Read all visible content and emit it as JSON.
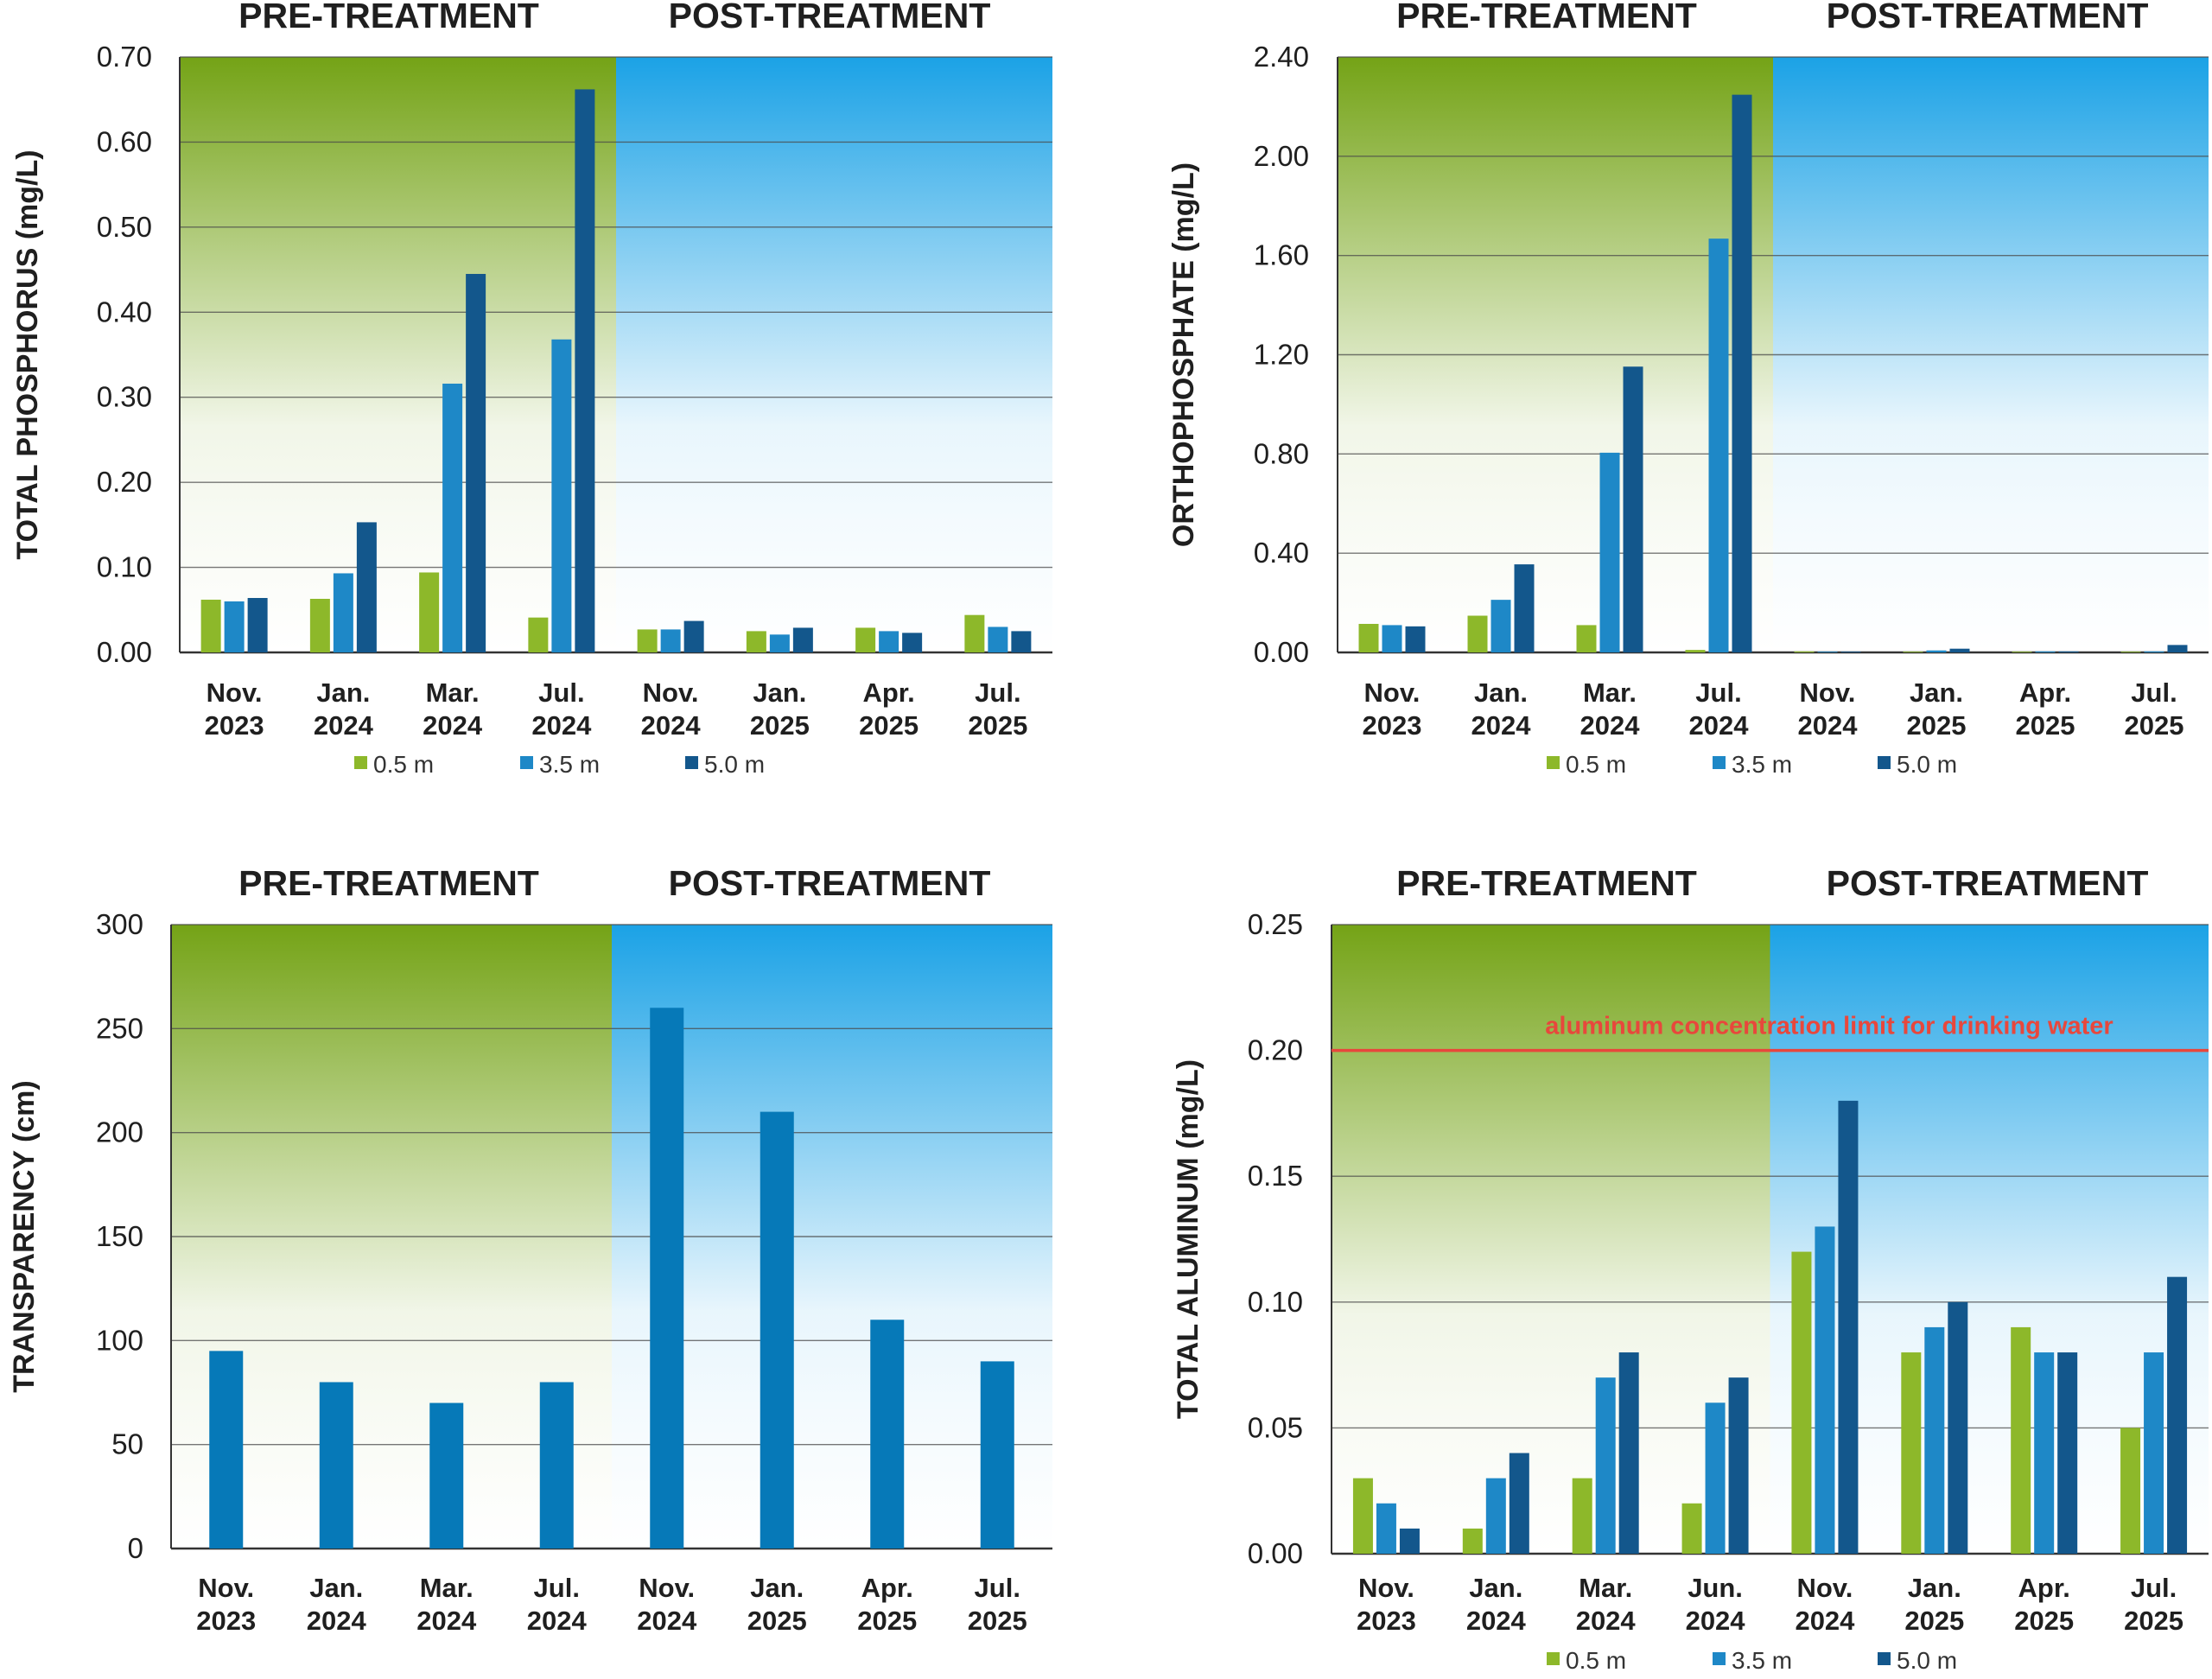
{
  "colors": {
    "series_0_5m": "#8db82a",
    "series_3_5m": "#1e88c7",
    "series_5_0m": "#13578c",
    "transparency_bar": "#0679b8",
    "pre_treatment_band": "#74a316",
    "post_treatment_band": "#1ba2e6",
    "limit_line": "#e8473c"
  },
  "chart_data": [
    {
      "type": "bar",
      "panel": "top-left",
      "phases": [
        "PRE-TREATMENT",
        "POST-TREATMENT"
      ],
      "phase_split_after_index": 3,
      "ylabel": "TOTAL PHOSPHORUS  (mg/L)",
      "ylim": [
        0,
        0.7
      ],
      "yticks": [
        "0.00",
        "0.10",
        "0.20",
        "0.30",
        "0.40",
        "0.50",
        "0.60",
        "0.70"
      ],
      "categories": [
        [
          "Nov.",
          "2023"
        ],
        [
          "Jan.",
          "2024"
        ],
        [
          "Mar.",
          "2024"
        ],
        [
          "Jul.",
          "2024"
        ],
        [
          "Nov.",
          "2024"
        ],
        [
          "Jan.",
          "2025"
        ],
        [
          "Apr.",
          "2025"
        ],
        [
          "Jul.",
          "2025"
        ]
      ],
      "legend_position": "bottom",
      "series": [
        {
          "name": "0.5 m",
          "color_key": "series_0_5m",
          "values": [
            0.062,
            0.063,
            0.094,
            0.041,
            0.027,
            0.025,
            0.029,
            0.044
          ]
        },
        {
          "name": "3.5 m",
          "color_key": "series_3_5m",
          "values": [
            0.06,
            0.093,
            0.316,
            0.368,
            0.027,
            0.021,
            0.025,
            0.03
          ]
        },
        {
          "name": "5.0 m",
          "color_key": "series_5_0m",
          "values": [
            0.064,
            0.153,
            0.445,
            0.662,
            0.037,
            0.029,
            0.023,
            0.025
          ]
        }
      ]
    },
    {
      "type": "bar",
      "panel": "top-right",
      "phases": [
        "PRE-TREATMENT",
        "POST-TREATMENT"
      ],
      "phase_split_after_index": 3,
      "ylabel": "ORTHOPHOSPHATE (mg/L)",
      "ylim": [
        0,
        2.4
      ],
      "yticks": [
        "0.00",
        "0.40",
        "0.80",
        "1.20",
        "1.60",
        "2.00",
        "2.40"
      ],
      "categories": [
        [
          "Nov.",
          "2023"
        ],
        [
          "Jan.",
          "2024"
        ],
        [
          "Mar.",
          "2024"
        ],
        [
          "Jul.",
          "2024"
        ],
        [
          "Nov.",
          "2024"
        ],
        [
          "Jan.",
          "2025"
        ],
        [
          "Apr.",
          "2025"
        ],
        [
          "Jul.",
          "2025"
        ]
      ],
      "legend_position": "bottom",
      "series": [
        {
          "name": "0.5 m",
          "color_key": "series_0_5m",
          "values": [
            0.115,
            0.148,
            0.11,
            0.01,
            0.004,
            0.003,
            0.003,
            0.003
          ]
        },
        {
          "name": "3.5 m",
          "color_key": "series_3_5m",
          "values": [
            0.11,
            0.212,
            0.805,
            1.668,
            0.003,
            0.008,
            0.004,
            0.004
          ]
        },
        {
          "name": "5.0 m",
          "color_key": "series_5_0m",
          "values": [
            0.105,
            0.355,
            1.152,
            2.248,
            0.003,
            0.015,
            0.004,
            0.03
          ]
        }
      ]
    },
    {
      "type": "bar",
      "panel": "bottom-left",
      "phases": [
        "PRE-TREATMENT",
        "POST-TREATMENT"
      ],
      "phase_split_after_index": 3,
      "ylabel": "TRANSPARENCY (cm)",
      "ylim": [
        0,
        300
      ],
      "yticks": [
        "0",
        "50",
        "100",
        "150",
        "200",
        "250",
        "300"
      ],
      "categories": [
        [
          "Nov.",
          "2023"
        ],
        [
          "Jan.",
          "2024"
        ],
        [
          "Mar.",
          "2024"
        ],
        [
          "Jul.",
          "2024"
        ],
        [
          "Nov.",
          "2024"
        ],
        [
          "Jan.",
          "2025"
        ],
        [
          "Apr.",
          "2025"
        ],
        [
          "Jul.",
          "2025"
        ]
      ],
      "legend_position": "none",
      "series": [
        {
          "color_key": "transparency_bar",
          "values": [
            95,
            80,
            70,
            80,
            260,
            210,
            110,
            90
          ]
        }
      ]
    },
    {
      "type": "bar",
      "panel": "bottom-right",
      "phases": [
        "PRE-TREATMENT",
        "POST-TREATMENT"
      ],
      "phase_split_after_index": 3,
      "ylabel": "TOTAL ALUMINUM (mg/L)",
      "ylim": [
        0,
        0.25
      ],
      "yticks": [
        "0.00",
        "0.05",
        "0.10",
        "0.15",
        "0.20",
        "0.25"
      ],
      "categories": [
        [
          "Nov.",
          "2023"
        ],
        [
          "Jan.",
          "2024"
        ],
        [
          "Mar.",
          "2024"
        ],
        [
          "Jun.",
          "2024"
        ],
        [
          "Nov.",
          "2024"
        ],
        [
          "Jan.",
          "2025"
        ],
        [
          "Apr.",
          "2025"
        ],
        [
          "Jul.",
          "2025"
        ]
      ],
      "legend_position": "bottom",
      "reference_line": {
        "value": 0.2,
        "label": "aluminum concentration limit for drinking water",
        "color_key": "limit_line"
      },
      "series": [
        {
          "name": "0.5 m",
          "color_key": "series_0_5m",
          "values": [
            0.03,
            0.01,
            0.03,
            0.02,
            0.12,
            0.08,
            0.09,
            0.05
          ]
        },
        {
          "name": "3.5 m",
          "color_key": "series_3_5m",
          "values": [
            0.02,
            0.03,
            0.07,
            0.06,
            0.13,
            0.09,
            0.08,
            0.08
          ]
        },
        {
          "name": "5.0 m",
          "color_key": "series_5_0m",
          "values": [
            0.01,
            0.04,
            0.08,
            0.07,
            0.18,
            0.1,
            0.08,
            0.11
          ]
        }
      ]
    }
  ]
}
